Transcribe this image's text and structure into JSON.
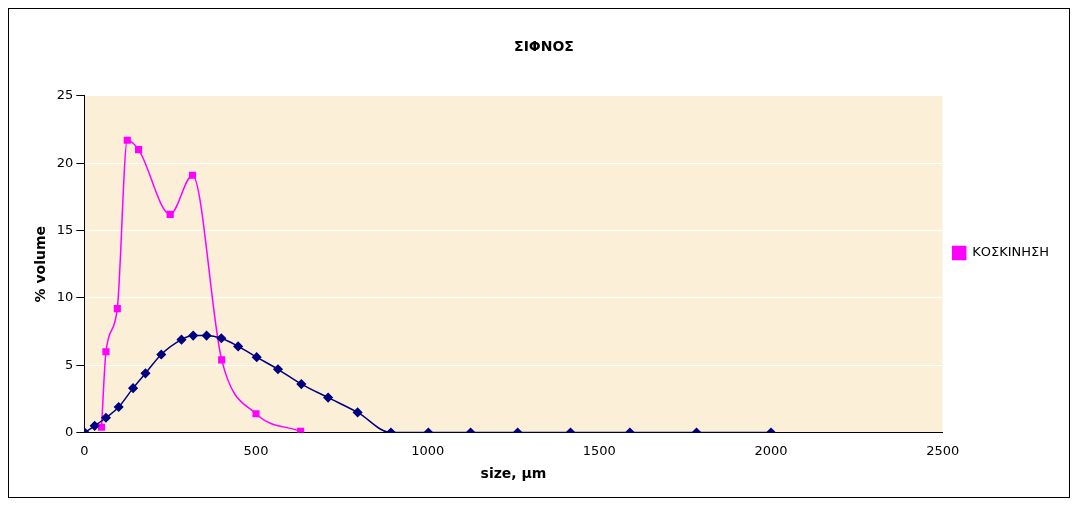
{
  "chart_data": {
    "type": "line",
    "title": "ΣΙΦΝΟΣ",
    "xlabel": "size, μm",
    "ylabel": "% volume",
    "xlim": [
      0,
      2500
    ],
    "xticks": [
      0,
      500,
      1000,
      1500,
      2000,
      2500
    ],
    "ylim": [
      0,
      25
    ],
    "yticks": [
      0,
      5,
      10,
      15,
      20,
      25
    ],
    "grid": "y",
    "legend": "right",
    "series": [
      {
        "color": "#000080",
        "marker": "diamond",
        "x": [
          1,
          30,
          63,
          100,
          142,
          178,
          224,
          283,
          317,
          356,
          399,
          448,
          502,
          564,
          632,
          710,
          796,
          893,
          1002,
          1125,
          1262,
          1416,
          1589,
          1783,
          2000
        ],
        "values": [
          0,
          0.5,
          1.1,
          1.9,
          3.3,
          4.4,
          5.8,
          6.9,
          7.2,
          7.2,
          7.0,
          6.4,
          5.6,
          4.7,
          3.6,
          2.6,
          1.5,
          0,
          0,
          0,
          0,
          0,
          0,
          0,
          0
        ]
      },
      {
        "name": "ΚΟΣΚΙΝΗΣΗ",
        "color": "#ff00ff",
        "marker": "square",
        "x": [
          50,
          63,
          96,
          125,
          158,
          250,
          315,
          400,
          500,
          630
        ],
        "values": [
          0.4,
          6.0,
          9.2,
          21.7,
          21.0,
          16.2,
          19.1,
          5.4,
          1.4,
          0.1
        ]
      }
    ]
  }
}
